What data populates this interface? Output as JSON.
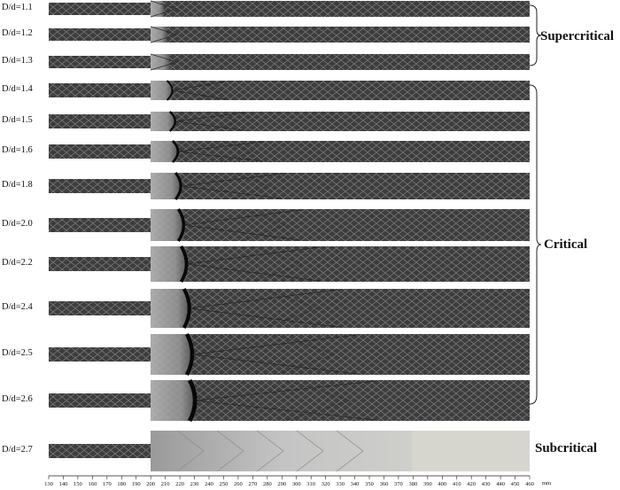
{
  "rows": [
    {
      "label": "D/d=1.1",
      "regime": "supercritical"
    },
    {
      "label": "D/d=1.2",
      "regime": "supercritical"
    },
    {
      "label": "D/d=1.3",
      "regime": "supercritical"
    },
    {
      "label": "D/d=1.4",
      "regime": "critical"
    },
    {
      "label": "D/d=1.5",
      "regime": "critical"
    },
    {
      "label": "D/d=1.6",
      "regime": "critical"
    },
    {
      "label": "D/d=1.8",
      "regime": "critical"
    },
    {
      "label": "D/d=2.0",
      "regime": "critical"
    },
    {
      "label": "D/d=2.2",
      "regime": "critical"
    },
    {
      "label": "D/d=2.4",
      "regime": "critical"
    },
    {
      "label": "D/d=2.5",
      "regime": "critical"
    },
    {
      "label": "D/d=2.6",
      "regime": "critical"
    },
    {
      "label": "D/d=2.7",
      "regime": "subcritical"
    }
  ],
  "groups": {
    "supercritical": "Supercritical",
    "critical": "Critical",
    "subcritical": "Subcritical"
  },
  "axis": {
    "ticks": [
      "130",
      "140",
      "150",
      "160",
      "170",
      "180",
      "190",
      "200",
      "210",
      "220",
      "230",
      "240",
      "250",
      "260",
      "270",
      "280",
      "290",
      "300",
      "310",
      "320",
      "330",
      "340",
      "350",
      "360",
      "370",
      "380",
      "390",
      "400",
      "410",
      "420",
      "430",
      "440",
      "450",
      "460"
    ],
    "unit": "mm"
  },
  "colors": {
    "mesh_dark": "#3c3c3c",
    "mesh_light": "#6c6c6c",
    "subcritical_fill": "#d4d4cc"
  }
}
